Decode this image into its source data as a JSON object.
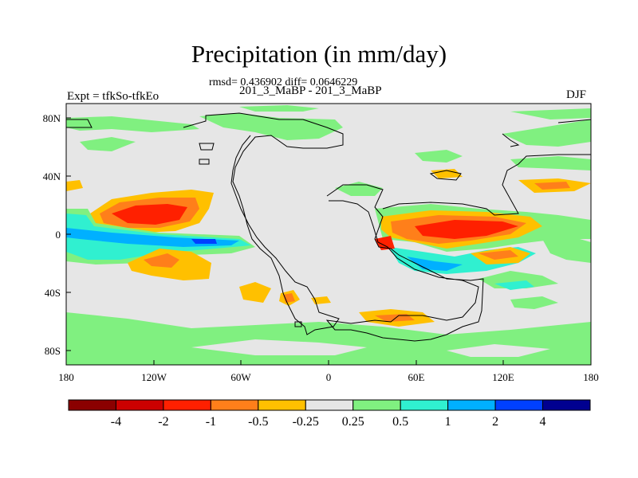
{
  "title": "Precipitation (in mm/day)",
  "stats_line": "rmsd= 0.436902 diff= 0.0646229",
  "subtitle": "201_3_MaBP - 201_3_MaBP",
  "left_label": "Expt = tfkSo-tfkEo",
  "right_label": "DJF",
  "axes": {
    "x_ticks": [
      "180",
      "120W",
      "60W",
      "0",
      "60E",
      "120E",
      "180"
    ],
    "y_ticks": [
      "80N",
      "40N",
      "0",
      "40S",
      "80S"
    ]
  },
  "colorbar": {
    "colors": [
      "#8b0000",
      "#cc0000",
      "#ff2000",
      "#ff7f1a",
      "#ffc000",
      "#e6e6e6",
      "#80f080",
      "#30f0d0",
      "#00b0ff",
      "#0040ff",
      "#000090"
    ],
    "labels": [
      "-4",
      "-2",
      "-1",
      "-0.5",
      "-0.25",
      "0.25",
      "0.5",
      "1",
      "2",
      "4"
    ]
  }
}
